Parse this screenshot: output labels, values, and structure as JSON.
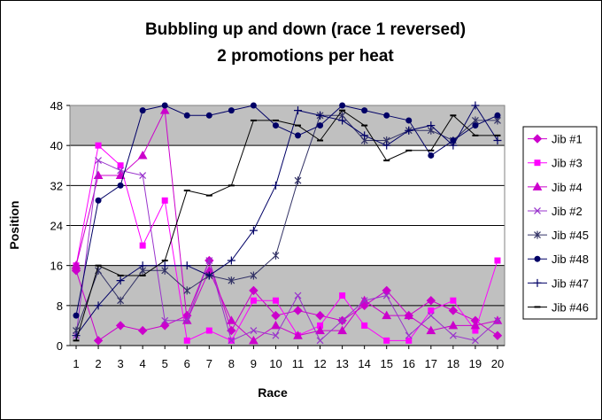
{
  "chart_data": {
    "type": "line",
    "title": "Bubbling up and down (race 1 reversed)",
    "subtitle": "2 promotions per heat",
    "xlabel": "Race",
    "ylabel": "Position",
    "x": [
      1,
      2,
      3,
      4,
      5,
      6,
      7,
      8,
      9,
      10,
      11,
      12,
      13,
      14,
      15,
      16,
      17,
      18,
      19,
      20
    ],
    "ylim": [
      0,
      48
    ],
    "yticks": [
      0,
      8,
      16,
      24,
      32,
      40,
      48
    ],
    "shaded_bands": [
      [
        0,
        16
      ],
      [
        40,
        48
      ]
    ],
    "shade_color": "#c0c0c0",
    "grid": true,
    "legend_position": "right",
    "series": [
      {
        "name": "Jib #1",
        "color": "#cc00cc",
        "marker": "diamond",
        "values": [
          15,
          1,
          4,
          3,
          4,
          6,
          17,
          3,
          11,
          6,
          7,
          6,
          5,
          8,
          11,
          6,
          9,
          7,
          5,
          2
        ]
      },
      {
        "name": "Jib #3",
        "color": "#ff00ff",
        "marker": "square",
        "values": [
          16,
          40,
          36,
          20,
          29,
          1,
          3,
          1,
          9,
          9,
          2,
          4,
          10,
          4,
          1,
          1,
          7,
          9,
          3,
          17
        ]
      },
      {
        "name": "Jib #4",
        "color": "#cc00cc",
        "marker": "triangle",
        "values": [
          16,
          34,
          34,
          38,
          47,
          5,
          15,
          5,
          1,
          4,
          2,
          3,
          3,
          9,
          6,
          6,
          3,
          4,
          4,
          5
        ]
      },
      {
        "name": "Jib #2",
        "color": "#9933cc",
        "marker": "x",
        "values": [
          2,
          37,
          35,
          34,
          5,
          5,
          17,
          1,
          3,
          2,
          10,
          1,
          5,
          9,
          10,
          2,
          6,
          2,
          1,
          5
        ]
      },
      {
        "name": "Jib #45",
        "color": "#333366",
        "marker": "asterisk",
        "values": [
          3,
          15,
          9,
          15,
          15,
          11,
          14,
          13,
          14,
          18,
          33,
          46,
          46,
          41,
          41,
          43,
          43,
          41,
          45,
          45
        ]
      },
      {
        "name": "Jib #48",
        "color": "#000066",
        "marker": "circle",
        "values": [
          6,
          29,
          32,
          47,
          48,
          46,
          46,
          47,
          48,
          44,
          42,
          44,
          48,
          47,
          46,
          45,
          38,
          41,
          44,
          46
        ]
      },
      {
        "name": "Jib #47",
        "color": "#000066",
        "marker": "plus",
        "values": [
          2,
          8,
          13,
          16,
          16,
          16,
          14,
          17,
          23,
          32,
          47,
          46,
          45,
          42,
          40,
          43,
          44,
          40,
          48,
          41
        ]
      },
      {
        "name": "Jib #46",
        "color": "#000000",
        "marker": "dash",
        "values": [
          1,
          16,
          14,
          14,
          17,
          31,
          30,
          32,
          45,
          45,
          44,
          41,
          47,
          44,
          37,
          39,
          39,
          46,
          42,
          42
        ]
      }
    ]
  }
}
